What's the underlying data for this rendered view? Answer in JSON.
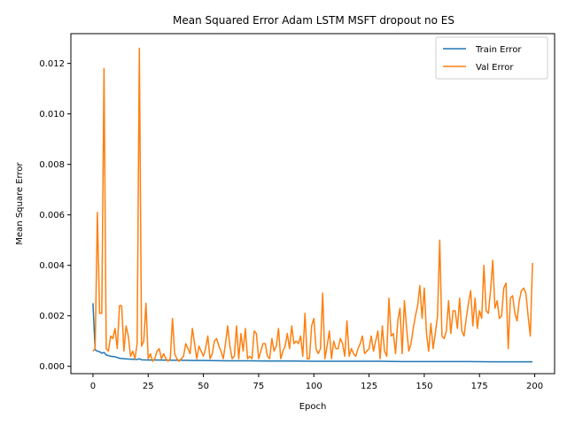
{
  "chart_data": {
    "type": "line",
    "title": "Mean Squared Error  Adam LSTM MSFT dropout no ES",
    "xlabel": "Epoch",
    "ylabel": "Mean Square Error",
    "xlim": [
      -10,
      209
    ],
    "ylim": [
      -0.00029,
      0.01318
    ],
    "xticks": [
      0,
      25,
      50,
      75,
      100,
      125,
      150,
      175,
      200
    ],
    "xtick_labels": [
      "0",
      "25",
      "50",
      "75",
      "100",
      "125",
      "150",
      "175",
      "200"
    ],
    "yticks": [
      0.0,
      0.002,
      0.004,
      0.006,
      0.008,
      0.01,
      0.012
    ],
    "ytick_labels": [
      "0.000",
      "0.002",
      "0.004",
      "0.006",
      "0.008",
      "0.010",
      "0.012"
    ],
    "grid": false,
    "legend_position": "upper-right",
    "series": [
      {
        "name": "Train Error",
        "color": "#1f77b4",
        "points": [
          [
            0,
            0.0025
          ],
          [
            1,
            0.00065
          ],
          [
            2,
            0.0006
          ],
          [
            3,
            0.00058
          ],
          [
            4,
            0.00052
          ],
          [
            5,
            0.00055
          ],
          [
            6,
            0.00045
          ],
          [
            8,
            0.0004
          ],
          [
            10,
            0.00038
          ],
          [
            12,
            0.00032
          ],
          [
            14,
            0.0003
          ],
          [
            16,
            0.00029
          ],
          [
            18,
            0.00028
          ],
          [
            20,
            0.00027
          ],
          [
            21,
            0.0003
          ],
          [
            22,
            0.00026
          ],
          [
            25,
            0.00025
          ],
          [
            30,
            0.00025
          ],
          [
            35,
            0.00024
          ],
          [
            40,
            0.00024
          ],
          [
            45,
            0.00023
          ],
          [
            50,
            0.00023
          ],
          [
            60,
            0.00022
          ],
          [
            70,
            0.00022
          ],
          [
            80,
            0.00021
          ],
          [
            90,
            0.00021
          ],
          [
            100,
            0.0002
          ],
          [
            110,
            0.0002
          ],
          [
            120,
            0.0002
          ],
          [
            130,
            0.0002
          ],
          [
            140,
            0.00019
          ],
          [
            150,
            0.00019
          ],
          [
            160,
            0.00019
          ],
          [
            170,
            0.00019
          ],
          [
            180,
            0.00018
          ],
          [
            190,
            0.00018
          ],
          [
            199,
            0.00018
          ]
        ]
      },
      {
        "name": "Val Error",
        "color": "#ff7f0e",
        "points": [
          [
            0,
            0.0006
          ],
          [
            1,
            0.0007
          ],
          [
            2,
            0.0061
          ],
          [
            3,
            0.0021
          ],
          [
            4,
            0.0021
          ],
          [
            5,
            0.0118
          ],
          [
            6,
            0.0007
          ],
          [
            7,
            0.0006
          ],
          [
            8,
            0.0012
          ],
          [
            9,
            0.0011
          ],
          [
            10,
            0.0015
          ],
          [
            11,
            0.0007
          ],
          [
            12,
            0.0024
          ],
          [
            13,
            0.0024
          ],
          [
            14,
            0.0006
          ],
          [
            15,
            0.0016
          ],
          [
            16,
            0.0012
          ],
          [
            17,
            0.0004
          ],
          [
            18,
            0.0006
          ],
          [
            19,
            0.0003
          ],
          [
            20,
            0.0009
          ],
          [
            21,
            0.0126
          ],
          [
            22,
            0.0008
          ],
          [
            23,
            0.001
          ],
          [
            24,
            0.0025
          ],
          [
            25,
            0.0003
          ],
          [
            26,
            0.0005
          ],
          [
            27,
            0.0002
          ],
          [
            28,
            0.0003
          ],
          [
            29,
            0.0006
          ],
          [
            30,
            0.0007
          ],
          [
            31,
            0.0003
          ],
          [
            32,
            0.0005
          ],
          [
            33,
            0.0003
          ],
          [
            34,
            0.0002
          ],
          [
            35,
            0.0003
          ],
          [
            36,
            0.0019
          ],
          [
            37,
            0.0005
          ],
          [
            38,
            0.0003
          ],
          [
            39,
            0.0002
          ],
          [
            40,
            0.0003
          ],
          [
            41,
            0.0004
          ],
          [
            42,
            0.0009
          ],
          [
            43,
            0.0007
          ],
          [
            44,
            0.0005
          ],
          [
            45,
            0.0015
          ],
          [
            46,
            0.0009
          ],
          [
            47,
            0.0003
          ],
          [
            48,
            0.0008
          ],
          [
            49,
            0.0006
          ],
          [
            50,
            0.0004
          ],
          [
            51,
            0.0007
          ],
          [
            52,
            0.0012
          ],
          [
            53,
            0.0003
          ],
          [
            54,
            0.0005
          ],
          [
            55,
            0.001
          ],
          [
            56,
            0.0011
          ],
          [
            57,
            0.0008
          ],
          [
            58,
            0.0006
          ],
          [
            59,
            0.0003
          ],
          [
            60,
            0.0009
          ],
          [
            61,
            0.0016
          ],
          [
            62,
            0.0008
          ],
          [
            63,
            0.0003
          ],
          [
            64,
            0.0004
          ],
          [
            65,
            0.0016
          ],
          [
            66,
            0.0003
          ],
          [
            67,
            0.0013
          ],
          [
            68,
            0.0006
          ],
          [
            69,
            0.0015
          ],
          [
            70,
            0.0003
          ],
          [
            71,
            0.0004
          ],
          [
            72,
            0.0003
          ],
          [
            73,
            0.0014
          ],
          [
            74,
            0.0013
          ],
          [
            75,
            0.0003
          ],
          [
            76,
            0.0006
          ],
          [
            77,
            0.0009
          ],
          [
            78,
            0.0009
          ],
          [
            79,
            0.0004
          ],
          [
            80,
            0.0003
          ],
          [
            81,
            0.0011
          ],
          [
            82,
            0.0006
          ],
          [
            83,
            0.0008
          ],
          [
            84,
            0.0015
          ],
          [
            85,
            0.0003
          ],
          [
            86,
            0.0006
          ],
          [
            87,
            0.0008
          ],
          [
            88,
            0.0013
          ],
          [
            89,
            0.0007
          ],
          [
            90,
            0.0016
          ],
          [
            91,
            0.0009
          ],
          [
            92,
            0.001
          ],
          [
            93,
            0.0009
          ],
          [
            94,
            0.0012
          ],
          [
            95,
            0.0004
          ],
          [
            96,
            0.0021
          ],
          [
            97,
            0.0003
          ],
          [
            98,
            0.0003
          ],
          [
            99,
            0.0016
          ],
          [
            100,
            0.0019
          ],
          [
            101,
            0.0007
          ],
          [
            102,
            0.0005
          ],
          [
            103,
            0.0007
          ],
          [
            104,
            0.0029
          ],
          [
            105,
            0.0003
          ],
          [
            106,
            0.0008
          ],
          [
            107,
            0.0014
          ],
          [
            108,
            0.0003
          ],
          [
            109,
            0.001
          ],
          [
            110,
            0.0007
          ],
          [
            111,
            0.0007
          ],
          [
            112,
            0.0011
          ],
          [
            113,
            0.0009
          ],
          [
            114,
            0.0004
          ],
          [
            115,
            0.0018
          ],
          [
            116,
            0.0004
          ],
          [
            117,
            0.0007
          ],
          [
            118,
            0.0005
          ],
          [
            119,
            0.0004
          ],
          [
            120,
            0.0007
          ],
          [
            121,
            0.0009
          ],
          [
            122,
            0.0012
          ],
          [
            123,
            0.0005
          ],
          [
            124,
            0.0006
          ],
          [
            125,
            0.0007
          ],
          [
            126,
            0.0012
          ],
          [
            127,
            0.0006
          ],
          [
            128,
            0.001
          ],
          [
            129,
            0.0014
          ],
          [
            130,
            0.0003
          ],
          [
            131,
            0.0016
          ],
          [
            132,
            0.0006
          ],
          [
            133,
            0.0004
          ],
          [
            134,
            0.0027
          ],
          [
            135,
            0.0012
          ],
          [
            136,
            0.0013
          ],
          [
            137,
            0.0005
          ],
          [
            138,
            0.0018
          ],
          [
            139,
            0.0023
          ],
          [
            140,
            0.0005
          ],
          [
            141,
            0.0026
          ],
          [
            142,
            0.0015
          ],
          [
            143,
            0.0006
          ],
          [
            144,
            0.0009
          ],
          [
            145,
            0.0015
          ],
          [
            146,
            0.002
          ],
          [
            147,
            0.0024
          ],
          [
            148,
            0.0032
          ],
          [
            149,
            0.0019
          ],
          [
            150,
            0.0031
          ],
          [
            151,
            0.0013
          ],
          [
            152,
            0.0006
          ],
          [
            153,
            0.0017
          ],
          [
            154,
            0.0007
          ],
          [
            155,
            0.0013
          ],
          [
            156,
            0.002
          ],
          [
            157,
            0.005
          ],
          [
            158,
            0.0012
          ],
          [
            159,
            0.0011
          ],
          [
            160,
            0.0014
          ],
          [
            161,
            0.0026
          ],
          [
            162,
            0.0013
          ],
          [
            163,
            0.0022
          ],
          [
            164,
            0.0022
          ],
          [
            165,
            0.0015
          ],
          [
            166,
            0.0027
          ],
          [
            167,
            0.0014
          ],
          [
            168,
            0.0012
          ],
          [
            169,
            0.0019
          ],
          [
            170,
            0.0025
          ],
          [
            171,
            0.003
          ],
          [
            172,
            0.0016
          ],
          [
            173,
            0.0027
          ],
          [
            174,
            0.0015
          ],
          [
            175,
            0.0022
          ],
          [
            176,
            0.0019
          ],
          [
            177,
            0.004
          ],
          [
            178,
            0.0022
          ],
          [
            179,
            0.0021
          ],
          [
            180,
            0.003
          ],
          [
            181,
            0.0042
          ],
          [
            182,
            0.0023
          ],
          [
            183,
            0.0026
          ],
          [
            184,
            0.0019
          ],
          [
            185,
            0.002
          ],
          [
            186,
            0.0031
          ],
          [
            187,
            0.0033
          ],
          [
            188,
            0.0007
          ],
          [
            189,
            0.0027
          ],
          [
            190,
            0.0028
          ],
          [
            191,
            0.0021
          ],
          [
            192,
            0.0018
          ],
          [
            193,
            0.0026
          ],
          [
            194,
            0.003
          ],
          [
            195,
            0.0031
          ],
          [
            196,
            0.0029
          ],
          [
            197,
            0.002
          ],
          [
            198,
            0.0012
          ],
          [
            199,
            0.0041
          ]
        ]
      }
    ]
  }
}
